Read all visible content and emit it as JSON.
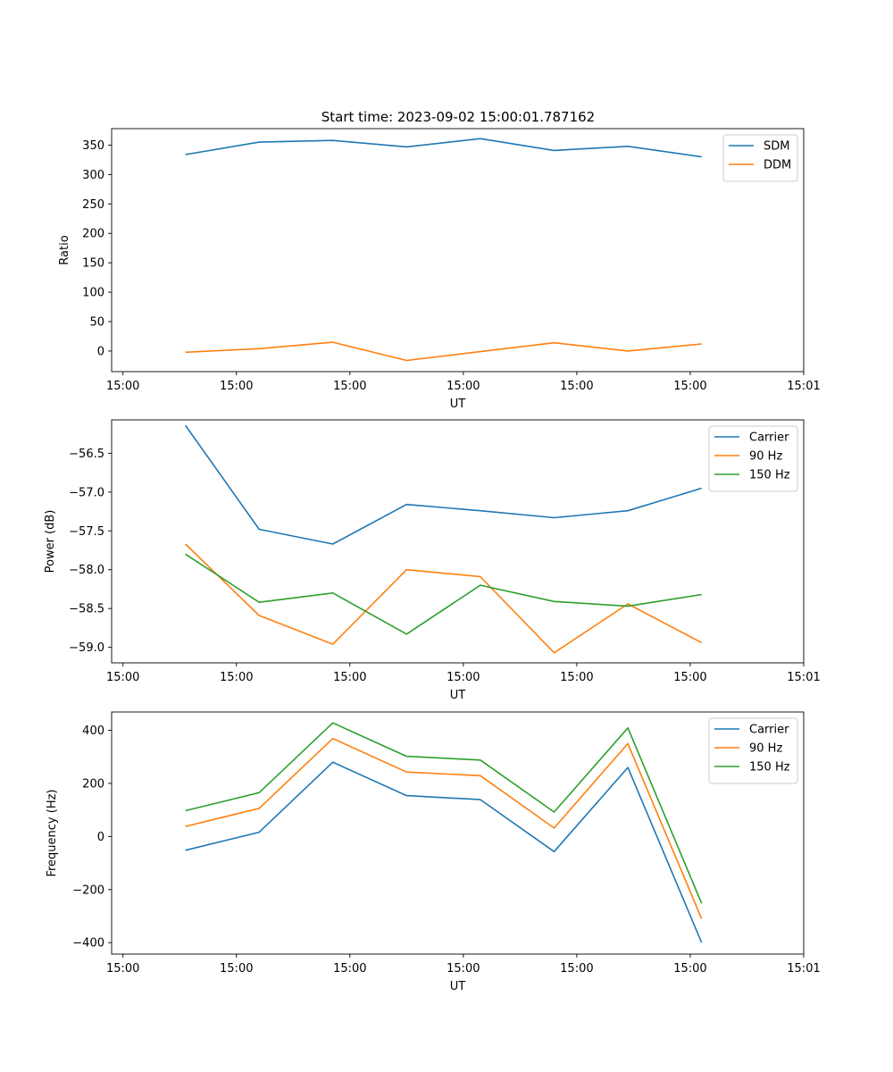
{
  "figure_title": "Start time: 2023-09-02 15:00:01.787162",
  "chart_data": [
    {
      "type": "line",
      "xlabel": "UT",
      "ylabel": "Ratio",
      "x": [
        1.3,
        2.6,
        3.9,
        5.2,
        6.5,
        7.8,
        9.1,
        10.4
      ],
      "xlim": [
        0,
        12.2
      ],
      "xticks": [
        0.2,
        2.2,
        4.2,
        6.2,
        8.2,
        10.2,
        12.2
      ],
      "xticklabels": [
        "15:00",
        "15:00",
        "15:00",
        "15:00",
        "15:00",
        "15:00",
        "15:01"
      ],
      "ylim": [
        -35,
        378
      ],
      "yticks": [
        0,
        50,
        100,
        150,
        200,
        250,
        300,
        350
      ],
      "yticklabels": [
        "0",
        "50",
        "100",
        "150",
        "200",
        "250",
        "300",
        "350"
      ],
      "legend_position": "top-right",
      "series": [
        {
          "name": "SDM",
          "color": "#1f77b4",
          "values": [
            334,
            355,
            358,
            347,
            361,
            341,
            348,
            330
          ]
        },
        {
          "name": "DDM",
          "color": "#ff7f0e",
          "values": [
            -2,
            4,
            15,
            -16,
            -1,
            14,
            0,
            12
          ]
        }
      ]
    },
    {
      "type": "line",
      "xlabel": "UT",
      "ylabel": "Power (dB)",
      "x": [
        1.3,
        2.6,
        3.9,
        5.2,
        6.5,
        7.8,
        9.1,
        10.4
      ],
      "xlim": [
        0,
        12.2
      ],
      "xticks": [
        0.2,
        2.2,
        4.2,
        6.2,
        8.2,
        10.2,
        12.2
      ],
      "xticklabels": [
        "15:00",
        "15:00",
        "15:00",
        "15:00",
        "15:00",
        "15:00",
        "15:01"
      ],
      "ylim": [
        -59.2,
        -56.07
      ],
      "yticks": [
        -59.0,
        -58.5,
        -58.0,
        -57.5,
        -57.0,
        -56.5
      ],
      "yticklabels": [
        "−59.0",
        "−58.5",
        "−58.0",
        "−57.5",
        "−57.0",
        "−56.5"
      ],
      "legend_position": "top-right",
      "series": [
        {
          "name": "Carrier",
          "color": "#1f77b4",
          "values": [
            -56.14,
            -57.48,
            -57.67,
            -57.16,
            -57.24,
            -57.33,
            -57.24,
            -56.95
          ]
        },
        {
          "name": "90 Hz",
          "color": "#ff7f0e",
          "values": [
            -57.67,
            -58.59,
            -58.96,
            -58.0,
            -58.09,
            -59.07,
            -58.44,
            -58.94
          ]
        },
        {
          "name": "150 Hz",
          "color": "#2ca02c",
          "values": [
            -57.8,
            -58.42,
            -58.3,
            -58.83,
            -58.2,
            -58.41,
            -58.47,
            -58.32
          ]
        }
      ]
    },
    {
      "type": "line",
      "xlabel": "UT",
      "ylabel": "Frequency (Hz)",
      "x": [
        1.3,
        2.6,
        3.9,
        5.2,
        6.5,
        7.8,
        9.1,
        10.4
      ],
      "xlim": [
        0,
        12.2
      ],
      "xticks": [
        0.2,
        2.2,
        4.2,
        6.2,
        8.2,
        10.2,
        12.2
      ],
      "xticklabels": [
        "15:00",
        "15:00",
        "15:00",
        "15:00",
        "15:00",
        "15:00",
        "15:01"
      ],
      "ylim": [
        -443,
        469
      ],
      "yticks": [
        -400,
        -200,
        0,
        200,
        400
      ],
      "yticklabels": [
        "−400",
        "−200",
        "0",
        "200",
        "400"
      ],
      "legend_position": "top-right",
      "series": [
        {
          "name": "Carrier",
          "color": "#1f77b4",
          "values": [
            -52,
            16,
            280,
            154,
            139,
            -57,
            260,
            -400
          ]
        },
        {
          "name": "90 Hz",
          "color": "#ff7f0e",
          "values": [
            38,
            106,
            369,
            243,
            229,
            32,
            350,
            -310
          ]
        },
        {
          "name": "150 Hz",
          "color": "#2ca02c",
          "values": [
            97,
            165,
            428,
            302,
            288,
            92,
            409,
            -252
          ]
        }
      ]
    }
  ]
}
